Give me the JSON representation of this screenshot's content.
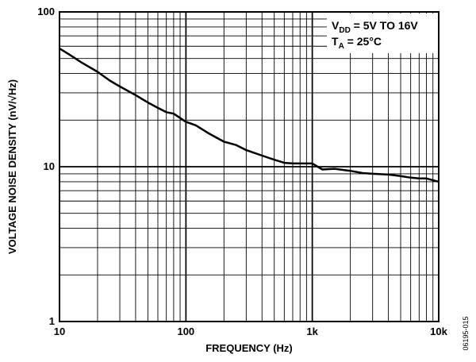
{
  "chart_data": {
    "type": "line",
    "xscale": "log",
    "yscale": "log",
    "xlim": [
      10,
      10000
    ],
    "ylim": [
      1,
      100
    ],
    "grid": true,
    "xlabel": "FREQUENCY (Hz)",
    "ylabel": "VOLTAGE NOISE DENSITY (nV/√Hz)",
    "x_ticks": [
      {
        "value": 10,
        "label": "10"
      },
      {
        "value": 100,
        "label": "100"
      },
      {
        "value": 1000,
        "label": "1k"
      },
      {
        "value": 10000,
        "label": "10k"
      }
    ],
    "y_ticks": [
      {
        "value": 1,
        "label": "1"
      },
      {
        "value": 10,
        "label": "10"
      },
      {
        "value": 100,
        "label": "100"
      }
    ],
    "legend": {
      "position": "top-right",
      "line1": {
        "main": "V",
        "sub": "DD",
        "rest": " = 5V TO 16V"
      },
      "line2": {
        "main": "T",
        "sub": "A",
        "rest": " = 25°C"
      }
    },
    "figure_id": "06195-015",
    "series": [
      {
        "color": "#000000",
        "x": [
          10,
          12,
          15,
          20,
          25,
          30,
          40,
          50,
          60,
          70,
          80,
          100,
          120,
          150,
          200,
          250,
          300,
          400,
          500,
          600,
          700,
          800,
          1000,
          1200,
          1500,
          2000,
          2500,
          3000,
          4000,
          5000,
          6000,
          7000,
          8000,
          10000
        ],
        "y": [
          58,
          53,
          47,
          41,
          36,
          33,
          29,
          26,
          24,
          22.5,
          22,
          19.5,
          18.5,
          16.5,
          14.5,
          13.8,
          12.8,
          11.8,
          11.1,
          10.6,
          10.5,
          10.5,
          10.5,
          9.6,
          9.7,
          9.4,
          9.1,
          9.0,
          8.9,
          8.7,
          8.5,
          8.4,
          8.4,
          8.0
        ]
      }
    ]
  }
}
